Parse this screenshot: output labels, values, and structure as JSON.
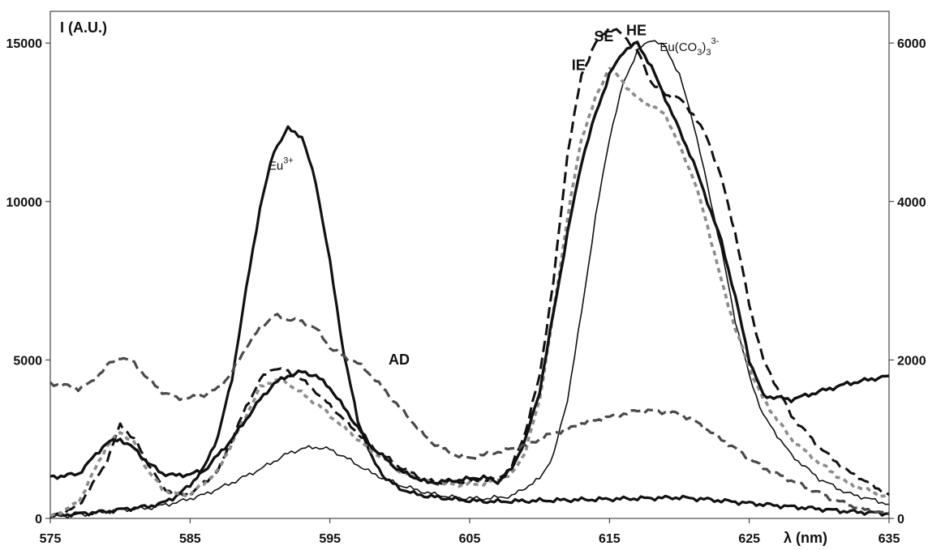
{
  "chart_data": {
    "type": "line",
    "ylabel": "I (A.U.)",
    "xlabel": "λ (nm)",
    "xlim": [
      575,
      635
    ],
    "ylim": [
      0,
      16000
    ],
    "ylim_right": [
      0,
      6400
    ],
    "xticks": [
      575,
      585,
      595,
      605,
      615,
      625,
      635
    ],
    "xtick_labels": [
      "575",
      "585",
      "595",
      "605",
      "615",
      "625",
      "635"
    ],
    "yticks": [
      0,
      5000,
      10000,
      15000
    ],
    "ytick_labels": [
      "0",
      "5000",
      "10000",
      "15000"
    ],
    "yticks_right": [
      0,
      2000,
      4000,
      6000
    ],
    "ytick_labels_right": [
      "0",
      "2000",
      "4000",
      "6000"
    ],
    "grid": false,
    "annotations": [
      {
        "text": "Eu",
        "sup": "3+",
        "style": "normal",
        "x": 590.6,
        "y": 11000
      },
      {
        "text": "AD",
        "style": "bold",
        "x": 599.2,
        "y": 4850
      },
      {
        "text": "IE",
        "style": "bold",
        "x": 612.3,
        "y": 14150
      },
      {
        "text": "SE",
        "style": "bold",
        "x": 613.9,
        "y": 15050
      },
      {
        "text": "HE",
        "style": "bold",
        "x": 616.2,
        "y": 15250
      },
      {
        "text": "Eu(CO",
        "sub": "3",
        "text2": ")",
        "sub2": "3",
        "sup": "3-",
        "style": "normal",
        "x": 618.6,
        "y": 14750
      }
    ],
    "series": [
      {
        "label": "Eu3+",
        "axis": "left",
        "color": "#111111",
        "width": 3.2,
        "dash": "",
        "x": [
          575,
          577,
          579,
          580,
          581,
          582,
          583,
          584,
          585,
          586,
          587,
          588,
          589,
          590,
          591,
          592,
          593,
          594,
          595,
          596,
          597,
          598,
          599,
          600,
          601,
          602,
          603,
          604,
          605,
          606,
          607,
          608,
          610,
          612,
          614,
          616,
          618,
          620,
          622,
          624,
          626,
          628,
          630,
          632,
          635
        ],
        "y": [
          80,
          150,
          220,
          280,
          330,
          380,
          480,
          700,
          1050,
          1600,
          2600,
          4400,
          7200,
          9800,
          11600,
          12300,
          12050,
          10600,
          8100,
          5200,
          3100,
          1900,
          1250,
          950,
          780,
          700,
          650,
          600,
          560,
          540,
          530,
          540,
          560,
          580,
          600,
          620,
          640,
          660,
          600,
          520,
          440,
          370,
          300,
          220,
          150
        ]
      },
      {
        "label": "Eu(CO3)3 3-",
        "axis": "right",
        "color": "#111111",
        "width": 1.6,
        "dash": "",
        "x": [
          575,
          578,
          580,
          582,
          584,
          586,
          588,
          590,
          592,
          593,
          594,
          595,
          596,
          598,
          600,
          602,
          604,
          606,
          608,
          610,
          611,
          612,
          613,
          614,
          615,
          616,
          617,
          618,
          619,
          620,
          621,
          622,
          623,
          624,
          625,
          626,
          628,
          630,
          632,
          635
        ],
        "y": [
          20,
          60,
          110,
          130,
          200,
          300,
          450,
          620,
          820,
          880,
          900,
          870,
          780,
          570,
          420,
          320,
          260,
          250,
          280,
          500,
          800,
          1500,
          2600,
          3800,
          4800,
          5500,
          5900,
          6050,
          5950,
          5600,
          5000,
          4200,
          3400,
          2500,
          1800,
          1300,
          800,
          500,
          320,
          180
        ]
      },
      {
        "label": "IE",
        "axis": "right",
        "color": "#111111",
        "width": 3.0,
        "dash": "14 7",
        "x": [
          575,
          577,
          579,
          580,
          581,
          582,
          583,
          584,
          585,
          587,
          589,
          590,
          591,
          592,
          593,
          594,
          596,
          598,
          600,
          602,
          603,
          605,
          607,
          608,
          609,
          610,
          611,
          612,
          613,
          614,
          615,
          616,
          617,
          618,
          619,
          620,
          621,
          622,
          623,
          624,
          625,
          626,
          628,
          630,
          632,
          635
        ],
        "y": [
          20,
          150,
          700,
          1180,
          1000,
          700,
          400,
          300,
          300,
          600,
          1400,
          1750,
          1900,
          1850,
          1750,
          1600,
          1250,
          900,
          650,
          470,
          450,
          470,
          500,
          650,
          1100,
          1800,
          3000,
          4600,
          5600,
          6000,
          6200,
          6100,
          5900,
          5500,
          5350,
          5300,
          5100,
          4800,
          4300,
          3600,
          2700,
          2000,
          1300,
          900,
          600,
          300
        ]
      },
      {
        "label": "SE",
        "axis": "right",
        "color": "#8c8c8c",
        "width": 3.6,
        "dash": "6 5",
        "x": [
          575,
          577,
          579,
          580,
          581,
          582,
          583,
          584,
          585,
          587,
          589,
          590,
          591,
          592,
          593,
          594,
          596,
          598,
          600,
          602,
          604,
          606,
          608,
          609,
          610,
          611,
          612,
          613,
          614,
          615,
          616,
          617,
          618,
          619,
          620,
          621,
          622,
          623,
          624,
          625,
          626,
          628,
          630,
          632,
          635
        ],
        "y": [
          20,
          200,
          900,
          1100,
          950,
          600,
          380,
          300,
          300,
          600,
          1300,
          1650,
          1750,
          1700,
          1580,
          1450,
          1150,
          850,
          600,
          450,
          420,
          440,
          550,
          850,
          1500,
          2600,
          3800,
          4800,
          5300,
          5700,
          5500,
          5300,
          5200,
          5100,
          4700,
          4300,
          3700,
          3000,
          2400,
          1900,
          1500,
          1000,
          700,
          450,
          250
        ]
      },
      {
        "label": "HE",
        "axis": "right",
        "color": "#111111",
        "width": 3.4,
        "dash": "",
        "x": [
          575,
          577,
          579,
          580,
          581,
          582,
          583,
          584,
          585,
          586,
          588,
          590,
          591,
          592,
          593,
          594,
          595,
          596,
          598,
          600,
          602,
          604,
          606,
          607,
          608,
          609,
          610,
          611,
          612,
          613,
          614,
          615,
          616,
          617,
          618,
          619,
          620,
          621,
          622,
          623,
          624,
          625,
          626,
          628,
          630,
          632,
          635
        ],
        "y": [
          520,
          560,
          950,
          1000,
          880,
          700,
          570,
          540,
          560,
          600,
          1000,
          1500,
          1700,
          1800,
          1850,
          1800,
          1650,
          1400,
          900,
          600,
          450,
          480,
          520,
          460,
          620,
          1000,
          1600,
          2600,
          3600,
          4500,
          5100,
          5600,
          5900,
          6000,
          5700,
          5300,
          4900,
          4500,
          4000,
          3500,
          2800,
          2000,
          1550,
          1500,
          1600,
          1700,
          1800
        ]
      },
      {
        "label": "AD",
        "axis": "left",
        "color": "#4a4a4a",
        "width": 3.2,
        "dash": "12 6",
        "x": [
          575,
          576,
          577,
          578,
          579,
          580,
          581,
          582,
          583,
          584,
          585,
          586,
          587,
          588,
          589,
          590,
          591,
          592,
          593,
          594,
          595,
          596,
          597,
          598,
          599,
          600,
          601,
          602,
          603,
          604,
          605,
          606,
          607,
          608,
          609,
          610,
          611,
          612,
          613,
          614,
          615,
          616,
          617,
          618,
          619,
          620,
          621,
          622,
          623,
          624,
          625,
          626,
          627,
          628,
          629,
          630,
          631,
          632,
          633,
          634,
          635
        ],
        "y": [
          4250,
          4200,
          4100,
          4300,
          4800,
          5100,
          4900,
          4400,
          4000,
          3800,
          3800,
          3900,
          4100,
          4600,
          5400,
          6000,
          6400,
          6300,
          6200,
          6000,
          5400,
          5100,
          4900,
          4500,
          4000,
          3500,
          3000,
          2500,
          2200,
          2000,
          1900,
          2000,
          2100,
          2200,
          2300,
          2500,
          2700,
          2800,
          3000,
          3100,
          3200,
          3300,
          3400,
          3400,
          3350,
          3300,
          3100,
          2800,
          2500,
          2200,
          1900,
          1600,
          1400,
          1200,
          1000,
          800,
          600,
          450,
          300,
          220,
          150
        ]
      }
    ]
  }
}
